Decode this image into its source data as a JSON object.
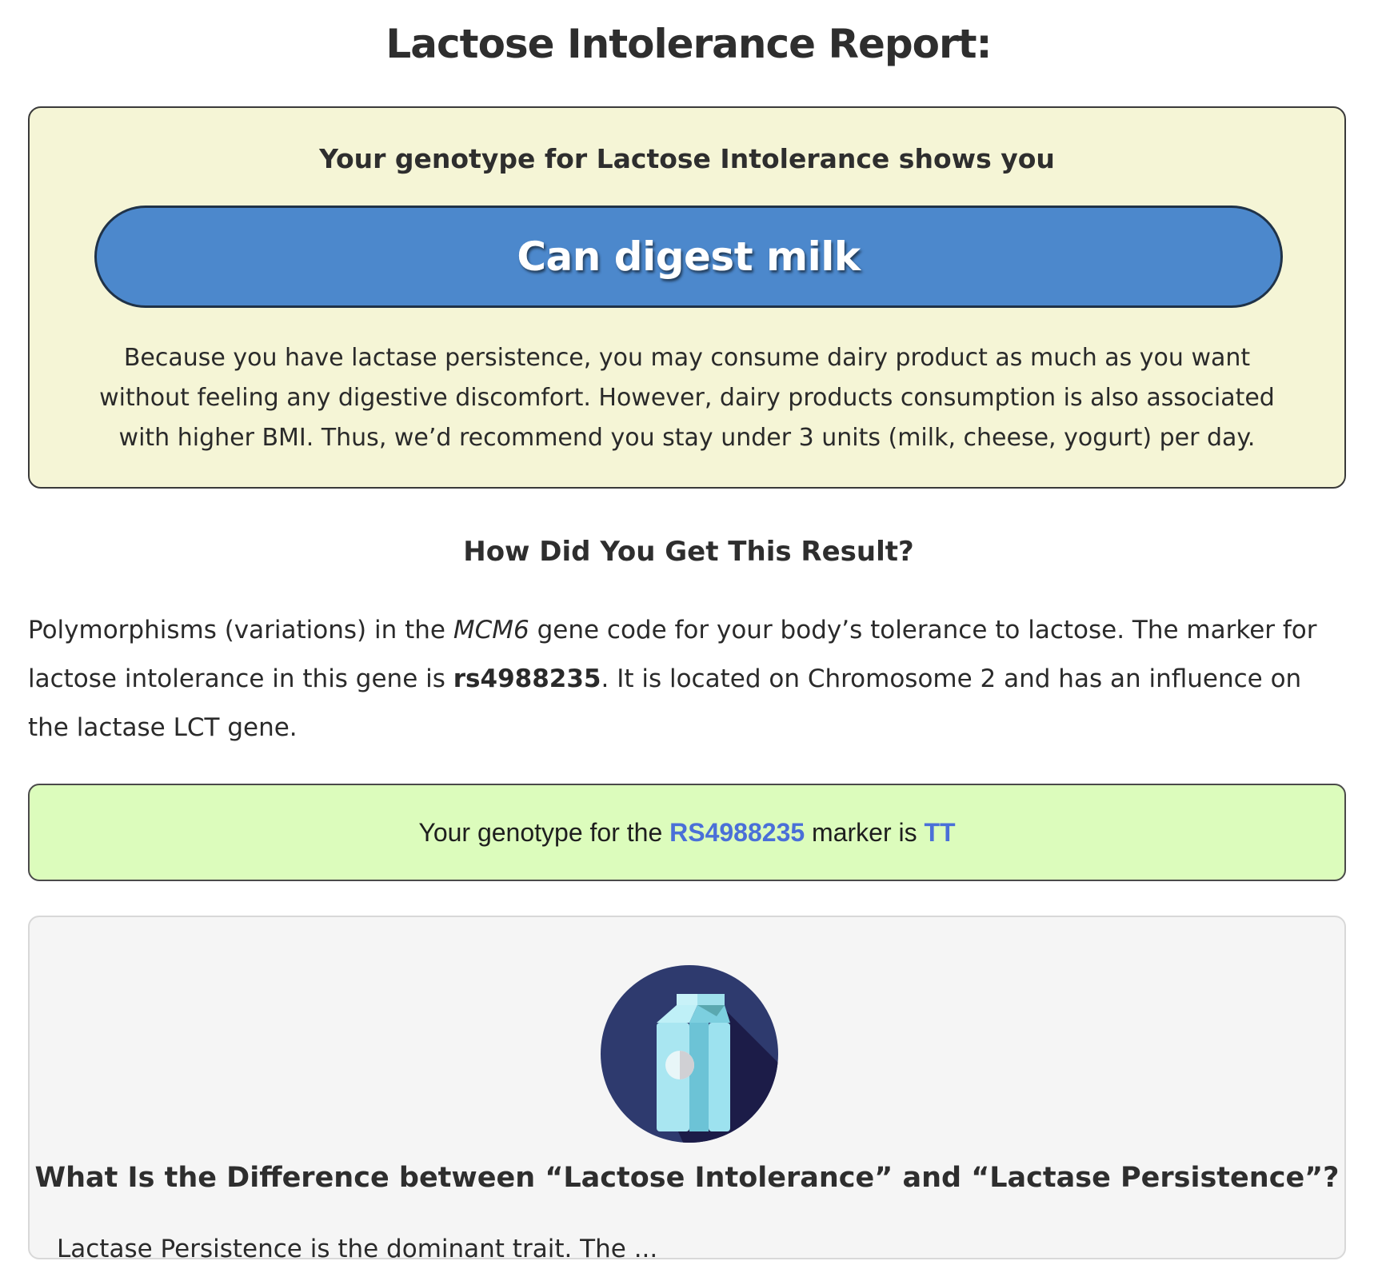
{
  "report": {
    "title": "Lactose Intolerance Report:"
  },
  "result": {
    "intro": "Your genotype for Lactose Intolerance shows you",
    "verdict": "Can digest milk",
    "description": "Because you have lactase persistence, you may consume dairy product as much as you want without feeling any digestive discomfort. However, dairy products consumption is also associated with higher BMI. Thus, we’d recommend you stay under 3 units (milk, cheese, yogurt) per day."
  },
  "how": {
    "heading": "How Did You Get This Result?",
    "text_part1": "Polymorphisms (variations) in the ",
    "gene_name": "MCM6",
    "text_part2": " gene code for your body’s tolerance to lactose. The marker for lactose intolerance in this gene is ",
    "marker_id": "rs4988235",
    "text_part3": ". It is located on Chromosome 2 and has an influence on the lactase LCT gene."
  },
  "genotype": {
    "prefix": "Your genotype for the ",
    "marker": "RS4988235",
    "middle": " marker is ",
    "value": "TT"
  },
  "info": {
    "icon": "milk-carton-icon",
    "heading": "What Is the Difference between “Lactose Intolerance” and “Lactase Persistence”?",
    "text": "Lactase Persistence is the dominant trait. The ..."
  },
  "colors": {
    "result_box_bg": "#f5f5d6",
    "verdict_pill_bg": "#4c88cc",
    "genotype_box_bg": "#dcfcbc",
    "genotype_highlight": "#4a6fd8",
    "info_box_bg": "#f5f5f5",
    "icon_circle": "#2e3a6e"
  }
}
